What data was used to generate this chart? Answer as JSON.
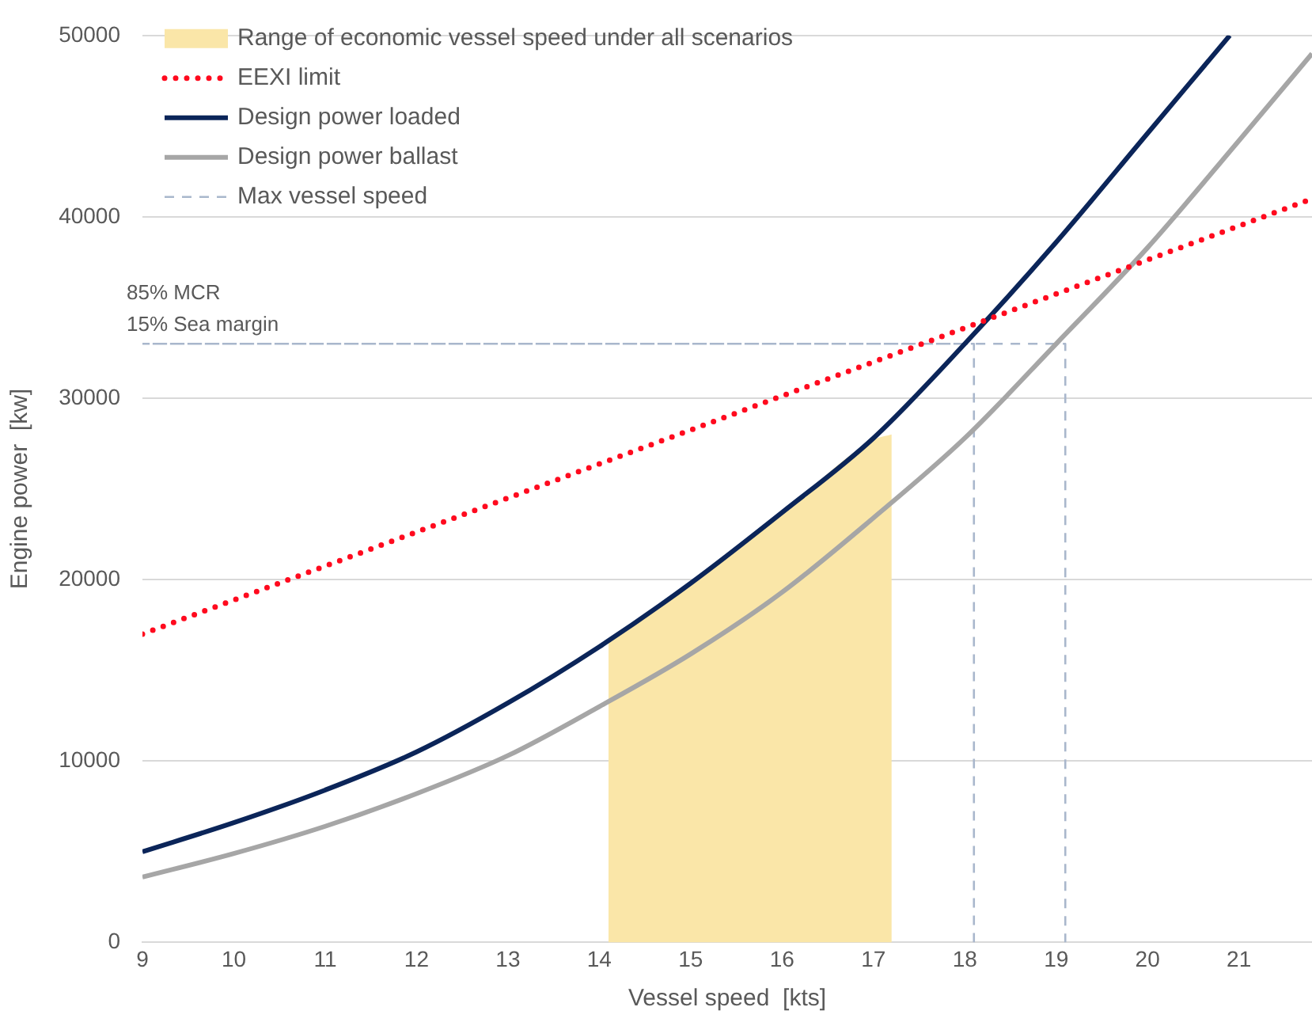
{
  "chart_data": {
    "type": "line",
    "xlabel": "Vessel speed  [kts]",
    "ylabel": "Engine power  [kw]",
    "xlim": [
      9,
      21.8
    ],
    "xticks": [
      9,
      10,
      11,
      12,
      13,
      14,
      15,
      16,
      17,
      18,
      19,
      20,
      21
    ],
    "ylim": [
      0,
      50000
    ],
    "yticks": [
      0,
      10000,
      20000,
      30000,
      40000,
      50000
    ],
    "grid": "y",
    "legend": "top left",
    "marker": "none",
    "annotations": [
      {
        "text": "85% MCR\n15% Sea margin",
        "x": 9,
        "y": 33000
      }
    ],
    "series": [
      {
        "type": "area",
        "name": "Range of economic vessel speed under all scenarios",
        "color": "#fae6a8",
        "x": [
          14.1,
          15,
          16,
          17,
          17.2
        ],
        "values": [
          16600,
          19800,
          23700,
          27700,
          28000
        ]
      },
      {
        "name": "EEXI limit",
        "color": "#ff0a1e",
        "line_style": "dotted",
        "x": [
          9,
          21.8
        ],
        "values": [
          17000,
          41000
        ]
      },
      {
        "name": "Design power loaded",
        "color": "#0b2559",
        "line_style": "solid",
        "x": [
          9,
          10,
          11,
          12,
          13,
          14,
          15,
          16,
          17,
          18,
          19,
          20,
          20.9
        ],
        "values": [
          5000,
          6600,
          8400,
          10500,
          13200,
          16300,
          19800,
          23700,
          27800,
          33000,
          38600,
          44600,
          50000
        ]
      },
      {
        "name": "Design power ballast",
        "color": "#a6a6a6",
        "line_style": "solid",
        "x": [
          9,
          10,
          11,
          12,
          13,
          14,
          15,
          16,
          17,
          18,
          19,
          20,
          21,
          21.8
        ],
        "values": [
          3600,
          4900,
          6400,
          8200,
          10300,
          13000,
          15900,
          19300,
          23400,
          27800,
          33000,
          38300,
          44200,
          49000
        ]
      },
      {
        "name": "Max vessel speed",
        "color": "#a9b7cc",
        "line_style": "dashed",
        "x": [
          18.1,
          18.1,
          9,
          19.1,
          19.1
        ],
        "values": [
          0,
          33000,
          33000,
          33000,
          0
        ]
      }
    ]
  }
}
